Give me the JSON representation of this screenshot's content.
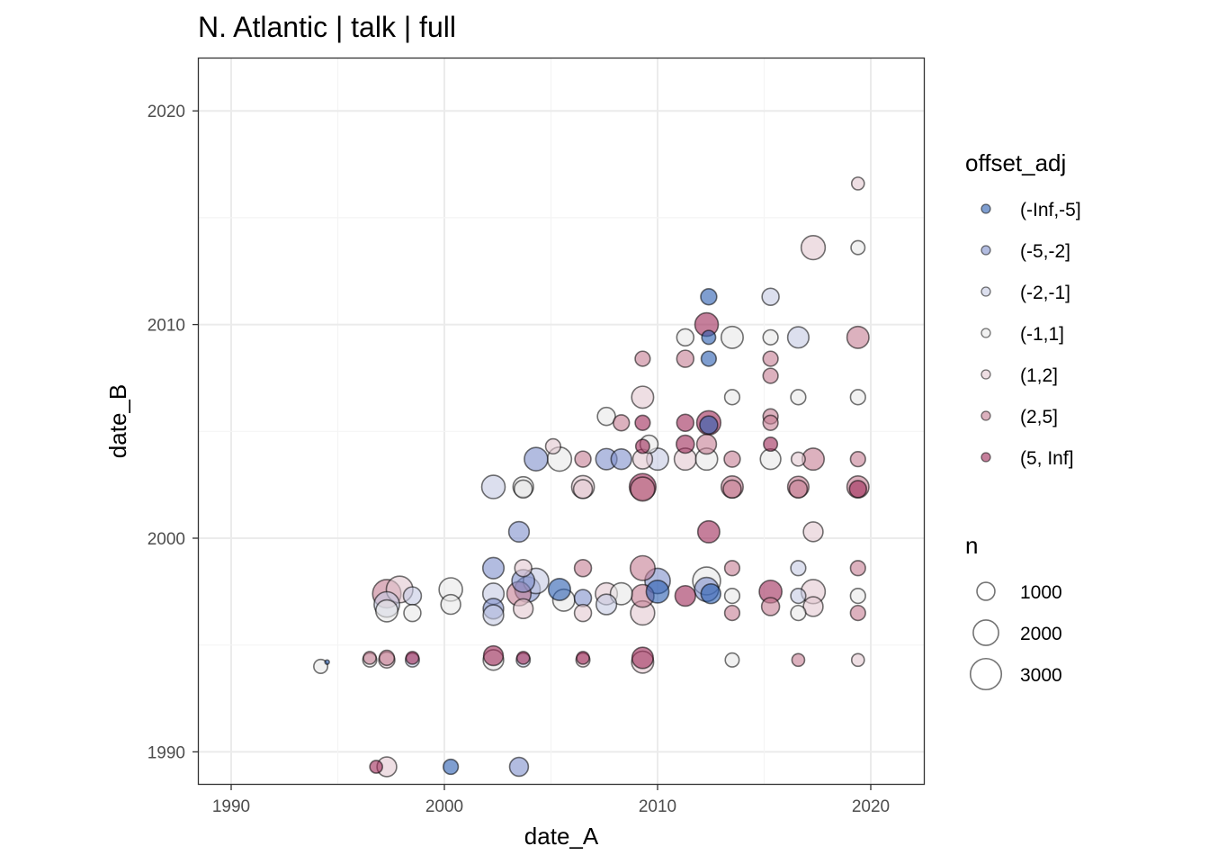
{
  "chart_data": {
    "type": "scatter",
    "title": "N. Atlantic | talk | full",
    "xlabel": "date_A",
    "ylabel": "date_B",
    "xlim": [
      1988.4,
      2022.5
    ],
    "ylim": [
      1988.5,
      2022.5
    ],
    "xticks": [
      1990,
      2000,
      2010,
      2020
    ],
    "yticks": [
      1990,
      2000,
      2010,
      2020
    ],
    "grid": true,
    "color_legend": {
      "title": "offset_adj",
      "levels": [
        "(-Inf,-5]",
        "(-5,-2]",
        "(-2,-1]",
        "(-1,1]",
        "(1,2]",
        "(2,5]",
        "(5, Inf]"
      ],
      "colors": [
        "#2a5db0",
        "#7f8fcb",
        "#c5cae3",
        "#e8e8e8",
        "#e3c8d0",
        "#c47d93",
        "#9e2a58"
      ]
    },
    "size_legend": {
      "title": "n",
      "values": [
        1000,
        2000,
        3000
      ]
    },
    "legend_placement": "right",
    "points": [
      [
        1996.8,
        1989.3,
        500,
        6
      ],
      [
        1997.3,
        1989.3,
        1200,
        4
      ],
      [
        2000.3,
        1989.3,
        700,
        0
      ],
      [
        2003.5,
        1989.3,
        1100,
        1
      ],
      [
        1994.2,
        1994.0,
        600,
        3
      ],
      [
        1994.5,
        1994.2,
        60,
        0
      ],
      [
        1996.5,
        1994.4,
        500,
        5
      ],
      [
        1996.5,
        1994.3,
        600,
        3
      ],
      [
        1997.3,
        1994.4,
        700,
        5
      ],
      [
        1997.3,
        1994.3,
        800,
        4
      ],
      [
        1998.5,
        1994.4,
        500,
        6
      ],
      [
        1998.5,
        1994.3,
        600,
        2
      ],
      [
        2002.3,
        1994.5,
        1200,
        6
      ],
      [
        2002.3,
        1994.3,
        1300,
        3
      ],
      [
        2003.7,
        1994.4,
        500,
        6
      ],
      [
        2003.7,
        1994.3,
        600,
        2
      ],
      [
        2006.5,
        1994.4,
        500,
        6
      ],
      [
        2006.5,
        1994.3,
        600,
        4
      ],
      [
        2009.3,
        1994.4,
        1400,
        6
      ],
      [
        2009.3,
        1994.2,
        1500,
        4
      ],
      [
        2013.5,
        1994.3,
        600,
        3
      ],
      [
        2016.6,
        1994.3,
        500,
        5
      ],
      [
        2019.4,
        1994.3,
        500,
        4
      ],
      [
        1997.3,
        1997.4,
        2500,
        5
      ],
      [
        1997.9,
        1997.6,
        2200,
        4
      ],
      [
        1997.3,
        1996.9,
        2000,
        2
      ],
      [
        1997.3,
        1996.6,
        1500,
        3
      ],
      [
        1998.5,
        1997.3,
        1000,
        2
      ],
      [
        1998.5,
        1996.5,
        900,
        3
      ],
      [
        2000.3,
        1997.6,
        1700,
        3
      ],
      [
        2000.3,
        1996.9,
        1200,
        3
      ],
      [
        2002.3,
        1998.6,
        1400,
        1
      ],
      [
        2002.3,
        1997.4,
        1400,
        2
      ],
      [
        2002.3,
        1996.7,
        1300,
        1
      ],
      [
        2002.3,
        1996.4,
        1300,
        2
      ],
      [
        2003.5,
        1997.4,
        1800,
        5
      ],
      [
        2003.7,
        1998.0,
        1600,
        1
      ],
      [
        2003.9,
        1997.6,
        2000,
        1
      ],
      [
        2004.3,
        1998.0,
        2000,
        2
      ],
      [
        2003.7,
        1996.7,
        1200,
        4
      ],
      [
        2003.7,
        1998.6,
        900,
        4
      ],
      [
        2005.6,
        1997.1,
        1500,
        3
      ],
      [
        2005.4,
        1997.6,
        1500,
        0
      ],
      [
        2006.5,
        1998.6,
        900,
        5
      ],
      [
        2006.5,
        1997.2,
        900,
        1
      ],
      [
        2006.5,
        1996.5,
        900,
        4
      ],
      [
        2007.6,
        1997.4,
        1500,
        4
      ],
      [
        2007.6,
        1996.9,
        1300,
        2
      ],
      [
        2008.3,
        1997.4,
        1500,
        3
      ],
      [
        2009.3,
        1998.6,
        1900,
        5
      ],
      [
        2009.3,
        1997.3,
        1600,
        5
      ],
      [
        2009.3,
        1996.5,
        1800,
        4
      ],
      [
        2010.0,
        1998.0,
        2000,
        1
      ],
      [
        2010.0,
        1997.5,
        1600,
        0
      ],
      [
        2011.3,
        1997.3,
        1300,
        6
      ],
      [
        2012.3,
        1998.0,
        2400,
        3
      ],
      [
        2012.3,
        1997.6,
        1800,
        1
      ],
      [
        2012.5,
        1997.4,
        1200,
        0
      ],
      [
        2013.5,
        1998.6,
        700,
        5
      ],
      [
        2013.5,
        1997.3,
        700,
        3
      ],
      [
        2013.5,
        1996.5,
        700,
        5
      ],
      [
        2015.3,
        1997.5,
        1600,
        6
      ],
      [
        2015.3,
        1996.8,
        1000,
        5
      ],
      [
        2016.6,
        1998.6,
        700,
        2
      ],
      [
        2016.6,
        1997.3,
        700,
        2
      ],
      [
        2016.6,
        1996.5,
        700,
        3
      ],
      [
        2017.3,
        1997.5,
        1800,
        4
      ],
      [
        2017.3,
        1996.8,
        1200,
        4
      ],
      [
        2019.4,
        1998.6,
        700,
        5
      ],
      [
        2019.4,
        1997.3,
        700,
        3
      ],
      [
        2019.4,
        1996.5,
        700,
        5
      ],
      [
        2003.5,
        2000.3,
        1300,
        1
      ],
      [
        2012.4,
        2000.3,
        1500,
        6
      ],
      [
        2017.3,
        2000.3,
        1200,
        4
      ],
      [
        2002.3,
        2002.4,
        1700,
        2
      ],
      [
        2003.7,
        2002.4,
        1300,
        3
      ],
      [
        2003.7,
        2002.3,
        1000,
        3
      ],
      [
        2006.5,
        2002.4,
        1600,
        4
      ],
      [
        2006.5,
        2002.3,
        1100,
        4
      ],
      [
        2009.3,
        2002.4,
        2200,
        6
      ],
      [
        2009.3,
        2002.3,
        1800,
        5
      ],
      [
        2013.5,
        2002.4,
        1500,
        5
      ],
      [
        2013.5,
        2002.3,
        1000,
        5
      ],
      [
        2016.6,
        2002.4,
        1400,
        5
      ],
      [
        2016.6,
        2002.3,
        1000,
        5
      ],
      [
        2019.4,
        2002.4,
        1500,
        5
      ],
      [
        2019.4,
        2002.3,
        900,
        6
      ],
      [
        2004.3,
        2003.7,
        1700,
        1
      ],
      [
        2005.4,
        2003.7,
        1800,
        3
      ],
      [
        2005.1,
        2004.3,
        700,
        4
      ],
      [
        2006.5,
        2003.7,
        800,
        5
      ],
      [
        2007.6,
        2003.7,
        1400,
        1
      ],
      [
        2008.3,
        2003.7,
        1300,
        1
      ],
      [
        2009.3,
        2003.7,
        1200,
        4
      ],
      [
        2009.3,
        2004.3,
        600,
        6
      ],
      [
        2009.6,
        2004.4,
        1000,
        3
      ],
      [
        2010.0,
        2003.7,
        1500,
        2
      ],
      [
        2011.3,
        2003.7,
        1500,
        4
      ],
      [
        2011.3,
        2004.4,
        1000,
        6
      ],
      [
        2012.3,
        2003.7,
        1500,
        3
      ],
      [
        2012.3,
        2004.4,
        1200,
        5
      ],
      [
        2013.5,
        2003.7,
        800,
        5
      ],
      [
        2015.3,
        2003.7,
        1300,
        3
      ],
      [
        2015.3,
        2004.4,
        600,
        6
      ],
      [
        2016.6,
        2003.7,
        600,
        4
      ],
      [
        2017.3,
        2003.7,
        1500,
        5
      ],
      [
        2019.4,
        2003.7,
        700,
        5
      ],
      [
        2007.6,
        2005.7,
        1000,
        3
      ],
      [
        2008.3,
        2005.4,
        800,
        5
      ],
      [
        2009.3,
        2005.4,
        700,
        6
      ],
      [
        2011.3,
        2005.4,
        900,
        6
      ],
      [
        2012.4,
        2005.4,
        1800,
        6
      ],
      [
        2012.4,
        2005.3,
        1000,
        0
      ],
      [
        2015.3,
        2005.7,
        700,
        5
      ],
      [
        2015.3,
        2005.4,
        700,
        5
      ],
      [
        2009.3,
        2006.6,
        1500,
        4
      ],
      [
        2013.5,
        2006.6,
        700,
        3
      ],
      [
        2016.6,
        2006.6,
        700,
        3
      ],
      [
        2019.4,
        2006.6,
        700,
        3
      ],
      [
        2015.3,
        2007.6,
        700,
        5
      ],
      [
        2009.3,
        2008.4,
        700,
        5
      ],
      [
        2011.3,
        2008.4,
        900,
        5
      ],
      [
        2012.4,
        2008.4,
        700,
        0
      ],
      [
        2015.3,
        2008.4,
        700,
        5
      ],
      [
        2011.3,
        2009.4,
        900,
        3
      ],
      [
        2012.4,
        2009.4,
        600,
        0
      ],
      [
        2013.5,
        2009.4,
        1500,
        3
      ],
      [
        2015.3,
        2009.4,
        700,
        3
      ],
      [
        2016.6,
        2009.4,
        1400,
        2
      ],
      [
        2019.4,
        2009.4,
        1500,
        5
      ],
      [
        2012.3,
        2010.0,
        1700,
        6
      ],
      [
        2012.4,
        2011.3,
        800,
        0
      ],
      [
        2015.3,
        2011.3,
        900,
        2
      ],
      [
        2017.3,
        2013.6,
        1800,
        4
      ],
      [
        2019.4,
        2013.6,
        600,
        3
      ],
      [
        2019.4,
        2016.6,
        500,
        4
      ]
    ]
  }
}
